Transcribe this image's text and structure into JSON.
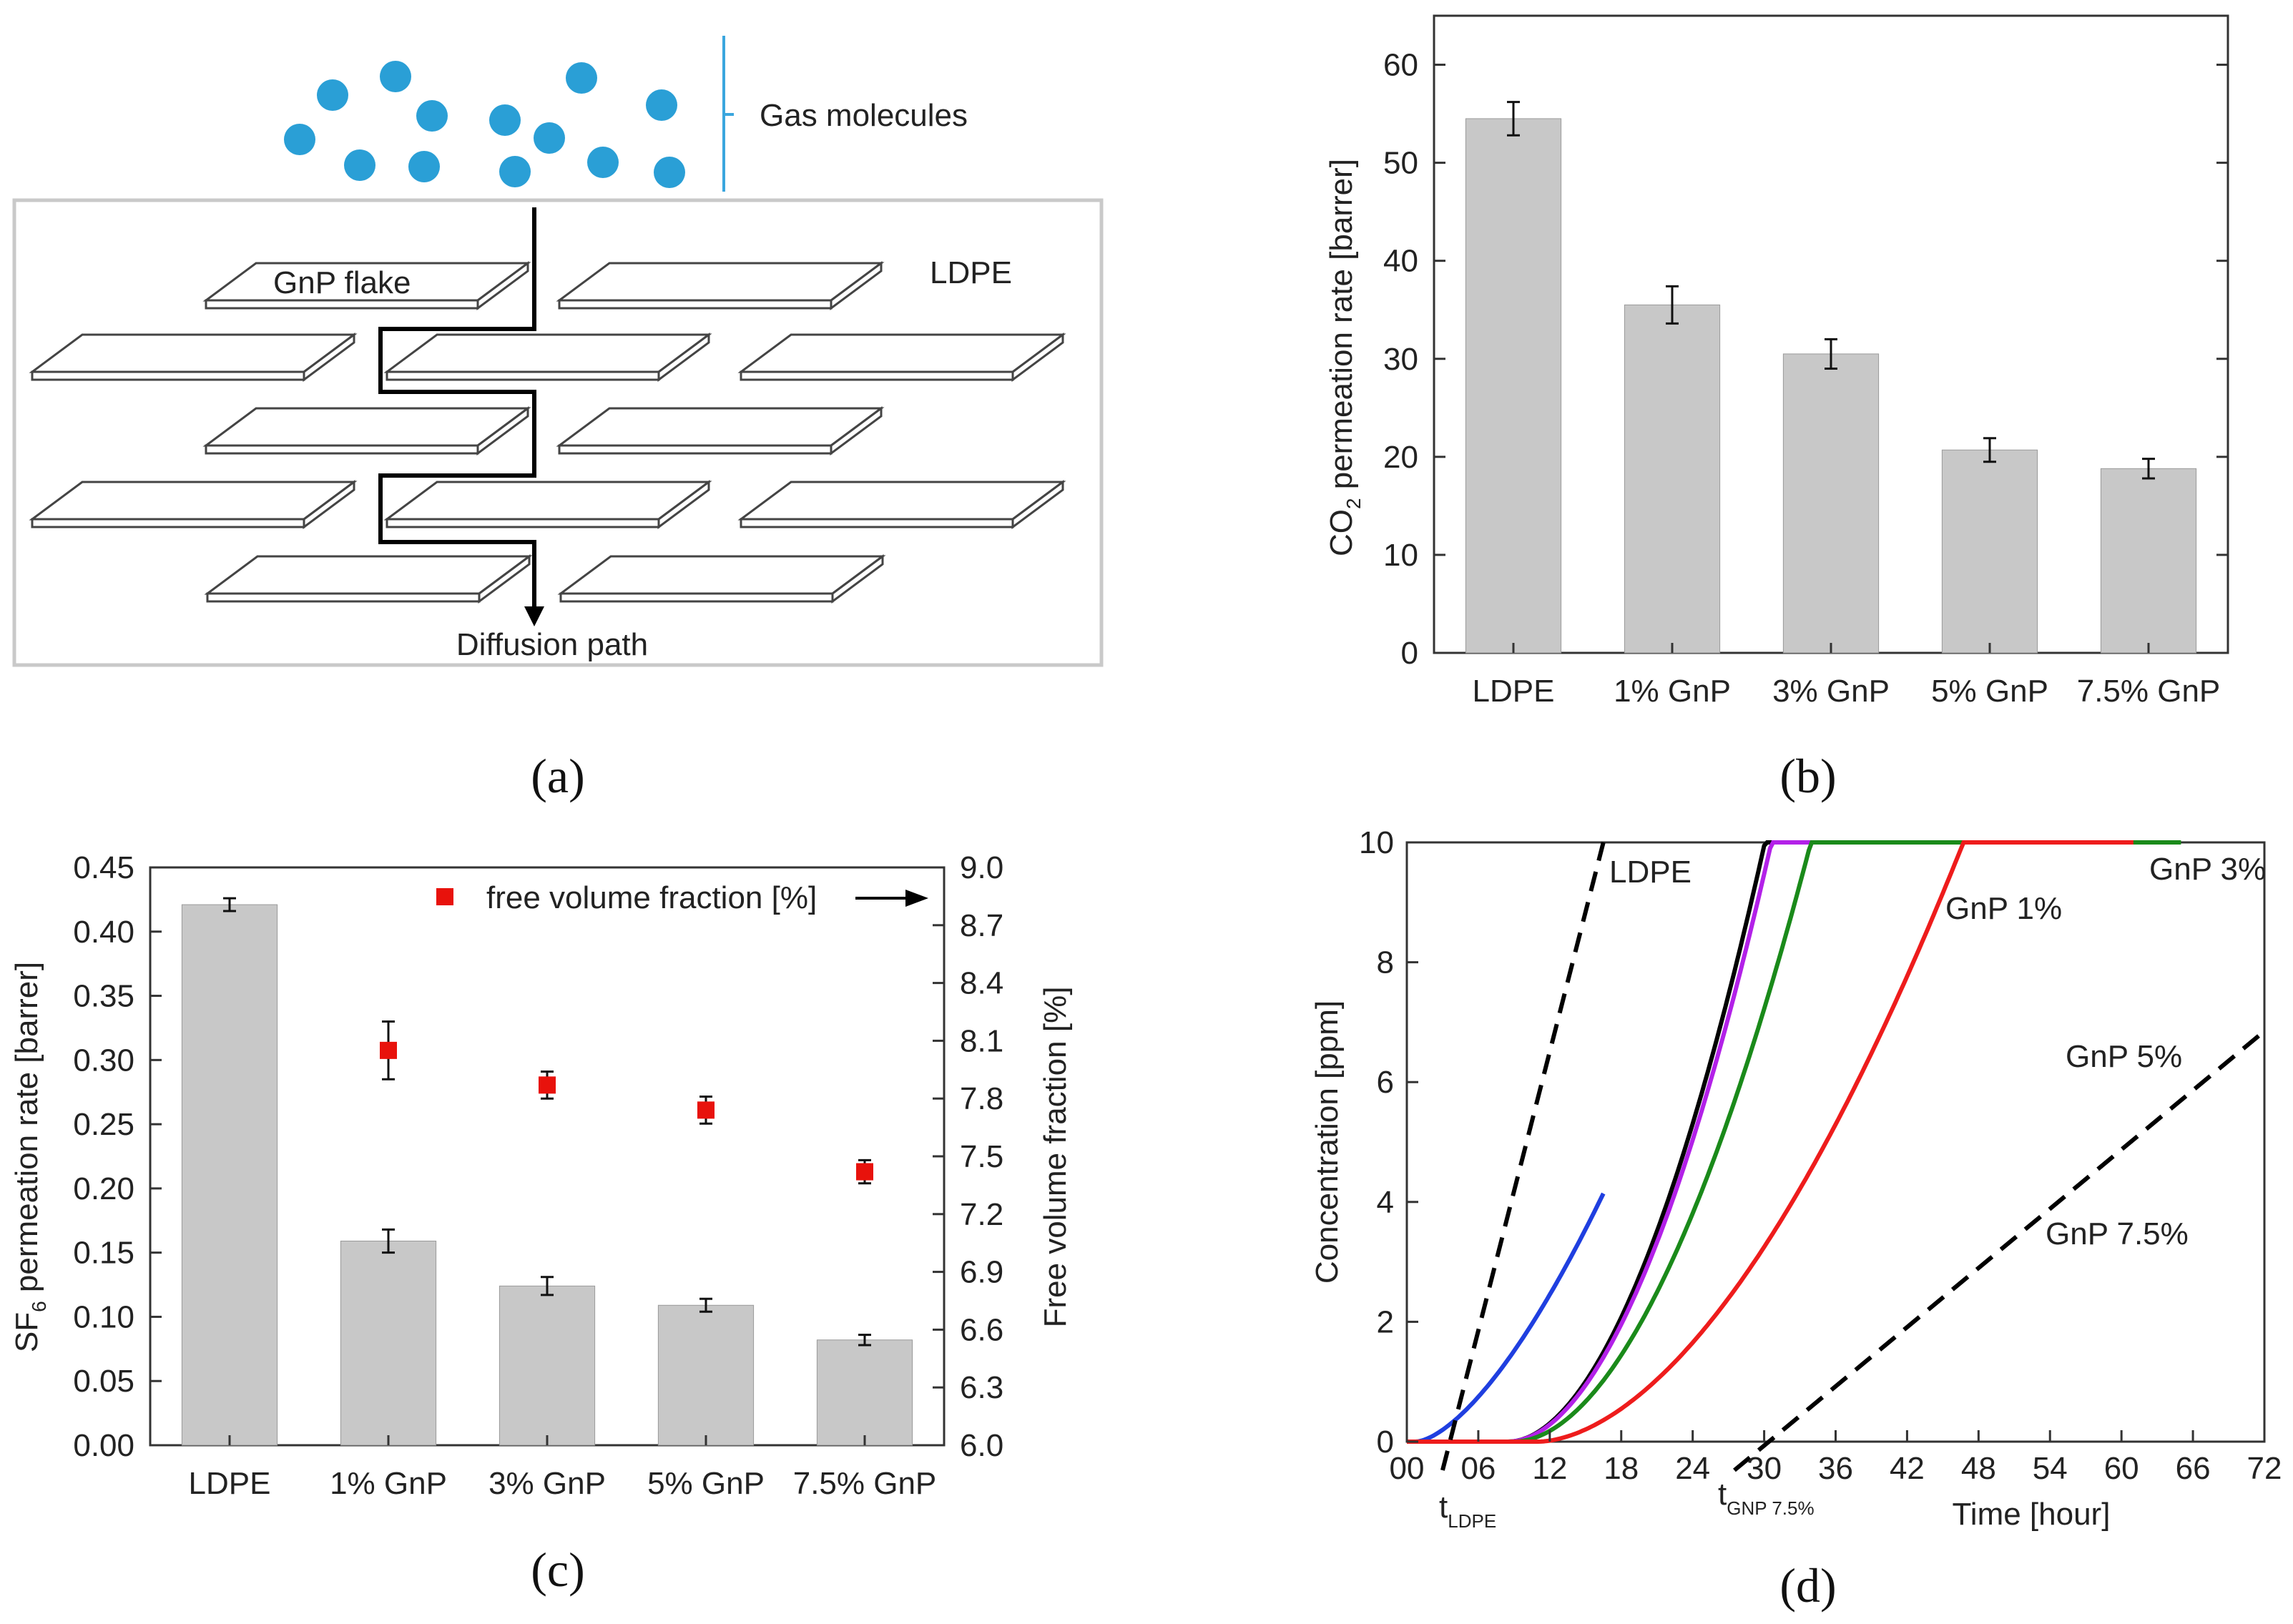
{
  "panel_labels": {
    "a": "(a)",
    "b": "(b)",
    "c": "(c)",
    "d": "(d)"
  },
  "schematic": {
    "gas_label": "Gas molecules",
    "flake_label": "GnP flake",
    "matrix_label": "LDPE",
    "path_label": "Diffusion path",
    "molecule_color": "#2a9fd6"
  },
  "chart_data": [
    {
      "id": "b",
      "type": "bar",
      "title": "",
      "categories": [
        "LDPE",
        "1% GnP",
        "3% GnP",
        "5% GnP",
        "7.5% GnP"
      ],
      "values": [
        54.5,
        35.5,
        30.5,
        20.7,
        18.8
      ],
      "errors": [
        1.7,
        1.9,
        1.5,
        1.2,
        1.0
      ],
      "ylabel_main": "CO",
      "ylabel_sub": "2",
      "ylabel_rest": " permeation rate [barrer]",
      "xlabel": "",
      "ylim": [
        0,
        65
      ],
      "yticks": [
        "0",
        "10",
        "20",
        "30",
        "40",
        "50",
        "60"
      ],
      "bar_color": "#c8c8c8"
    },
    {
      "id": "c",
      "type": "bar",
      "title": "",
      "categories": [
        "LDPE",
        "1% GnP",
        "3% GnP",
        "5% GnP",
        "7.5% GnP"
      ],
      "values": [
        0.421,
        0.159,
        0.124,
        0.109,
        0.082
      ],
      "errors": [
        0.005,
        0.009,
        0.007,
        0.005,
        0.004
      ],
      "ylabel_main": "SF",
      "ylabel_sub": "6",
      "ylabel_rest": " permeation rate [barrer]",
      "ylim": [
        0,
        0.45
      ],
      "yticks": [
        "0.00",
        "0.05",
        "0.10",
        "0.15",
        "0.20",
        "0.25",
        "0.30",
        "0.35",
        "0.40",
        "0.45"
      ],
      "bar_color": "#c8c8c8",
      "secondary_series": {
        "name": "free volume fraction [%]",
        "values": [
          null,
          8.05,
          7.87,
          7.74,
          7.42
        ],
        "errors": [
          null,
          0.15,
          0.07,
          0.07,
          0.06
        ],
        "color": "#e8120c",
        "ylabel": "Free volume fraction [%]",
        "ylim": [
          6.0,
          9.0
        ],
        "yticks": [
          "6.0",
          "6.3",
          "6.6",
          "6.9",
          "7.2",
          "7.5",
          "7.8",
          "8.1",
          "8.4",
          "8.7",
          "9.0"
        ]
      }
    },
    {
      "id": "d",
      "type": "line",
      "title": "",
      "xlabel": "Time [hour]",
      "ylabel": "Concentration [ppm]",
      "xlim": [
        0,
        72
      ],
      "ylim": [
        0,
        10
      ],
      "xticks": [
        "00",
        "06",
        "12",
        "18",
        "24",
        "30",
        "36",
        "42",
        "48",
        "54",
        "60",
        "66",
        "72"
      ],
      "yticks": [
        "0",
        "2",
        "4",
        "6",
        "8",
        "10"
      ],
      "series": [
        {
          "name": "LDPE",
          "color": "#1f3fe0",
          "t0": 0.8,
          "k": 0.058,
          "a": 1.55,
          "x_end": 16.5
        },
        {
          "name": "GnP 1%",
          "color": "#000000",
          "t0": 8.5,
          "k": 0.0275,
          "a": 1.92,
          "x_end": 61.5
        },
        {
          "name": "GnP 3%",
          "color": "#b321e8",
          "t0": 8.5,
          "k": 0.0254,
          "a": 1.93,
          "x_end": 62.5
        },
        {
          "name": "GnP 5%",
          "color": "#1a8a1a",
          "t0": 9.0,
          "k": 0.0222,
          "a": 1.9,
          "x_end": 65.0
        },
        {
          "name": "GnP 7.5%",
          "color": "#ee1c1c",
          "t0": 11.0,
          "k": 0.0172,
          "a": 1.78,
          "x_end": 61.0
        }
      ],
      "tangents": [
        {
          "name": "LDPE asymptote",
          "x1": 3.0,
          "y1": 0.0,
          "x2": 16.5,
          "y2": 10.0
        },
        {
          "name": "GnP 7.5% asymptote",
          "x1": 27.5,
          "y1": 0.0,
          "x2": 72.0,
          "y2": 6.85
        }
      ],
      "lag_labels": [
        {
          "main": "t",
          "sub": "LDPE"
        },
        {
          "main": "t",
          "sub": "GNP 7.5%"
        }
      ]
    }
  ]
}
